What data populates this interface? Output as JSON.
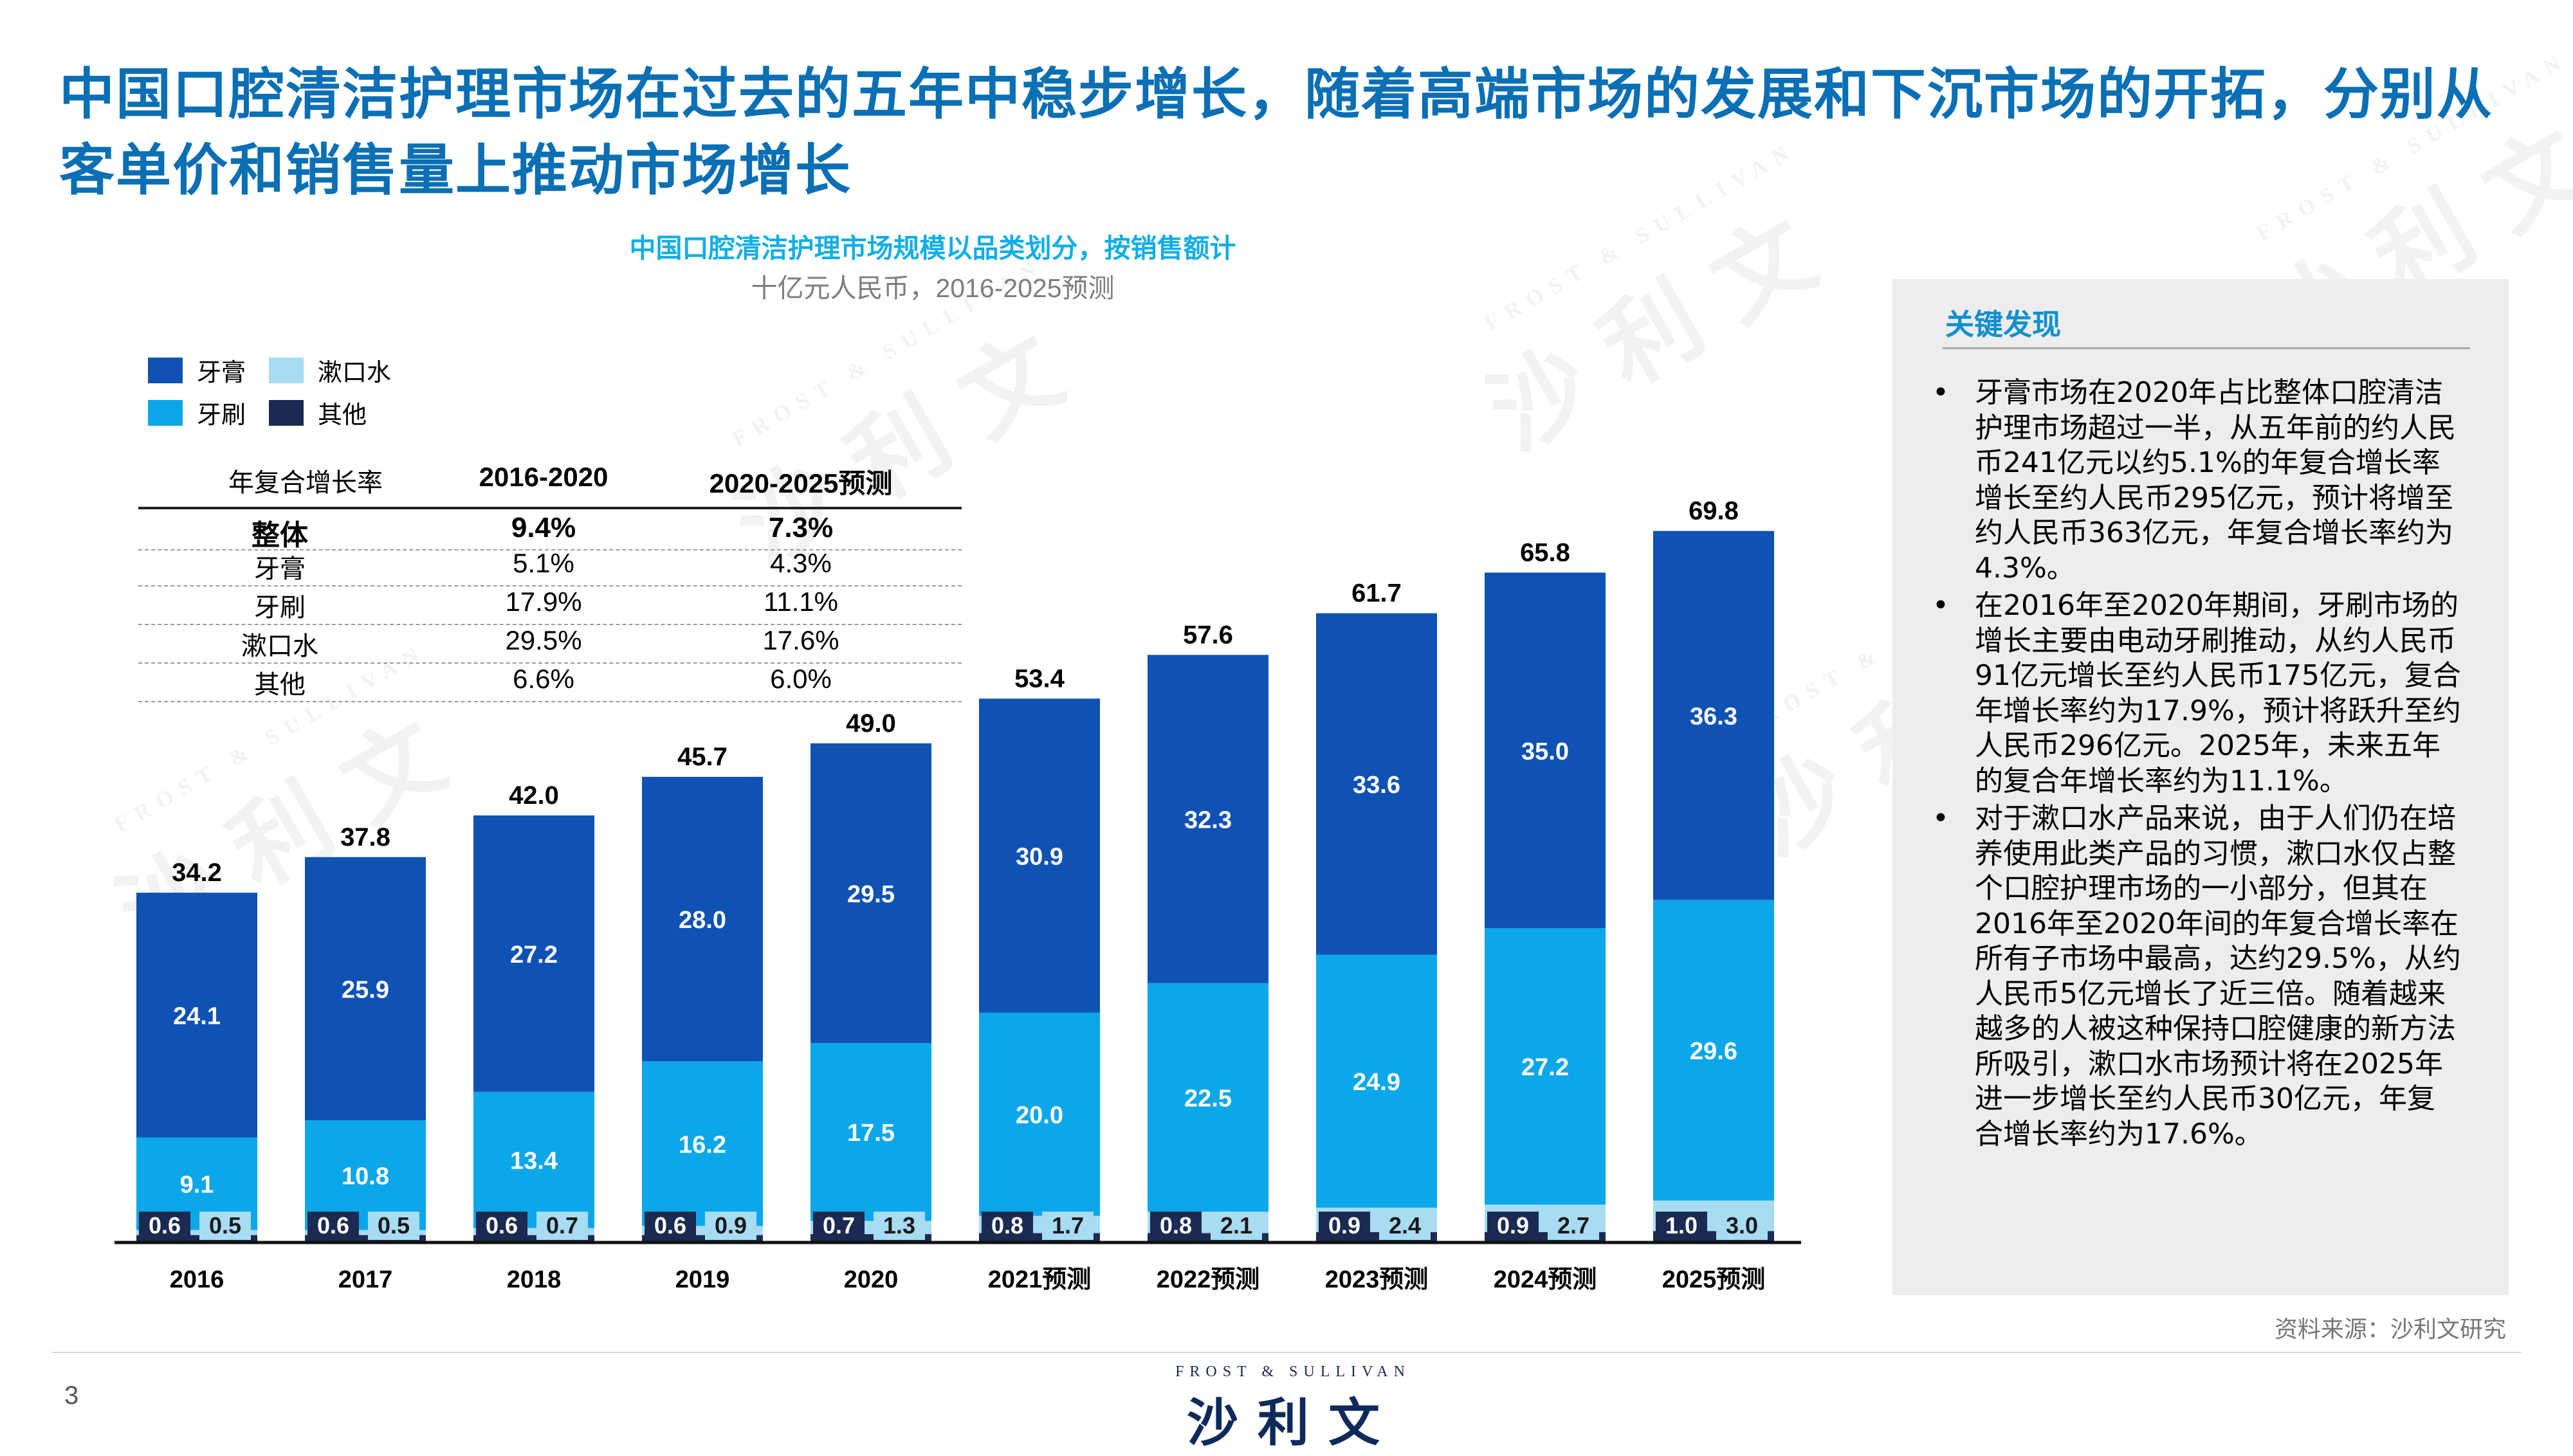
{
  "title": "中国口腔清洁护理市场在过去的五年中稳步增长，随着高端市场的发展和下沉市场的开拓，分别从客单价和销售量上推动市场增长",
  "page_number": "3",
  "source": "资料来源：沙利文研究",
  "brand": {
    "en": "FROST & SULLIVAN",
    "cn": "沙利文"
  },
  "watermark": {
    "en": "FROST & SULLIVAN",
    "cn": "沙利文"
  },
  "colors": {
    "toothpaste": "#0f52b3",
    "toothbrush": "#0ca7e8",
    "mouthwash": "#a7dcf3",
    "other": "#1a2a52",
    "title": "#0a6fb5"
  },
  "legend": [
    {
      "name": "牙膏",
      "color": "#0f52b3"
    },
    {
      "name": "漱口水",
      "color": "#a7dcf3"
    },
    {
      "name": "牙刷",
      "color": "#0ca7e8"
    },
    {
      "name": "其他",
      "color": "#1a2a52"
    }
  ],
  "cagr_table": {
    "header": [
      "年复合增长率",
      "2016-2020",
      "2020-2025预测"
    ],
    "rows": [
      [
        "整体",
        "9.4%",
        "7.3%"
      ],
      [
        "牙膏",
        "5.1%",
        "4.3%"
      ],
      [
        "牙刷",
        "17.9%",
        "11.1%"
      ],
      [
        "漱口水",
        "29.5%",
        "17.6%"
      ],
      [
        "其他",
        "6.6%",
        "6.0%"
      ]
    ]
  },
  "findings": {
    "heading": "关键发现",
    "items": [
      "牙膏市场在2020年占比整体口腔清洁护理市场超过一半，从五年前的约人民币241亿元以约5.1%的年复合增长率增长至约人民币295亿元，预计将增至约人民币363亿元，年复合增长率约为4.3%。",
      "在2016年至2020年期间，牙刷市场的增长主要由电动牙刷推动，从约人民币91亿元增长至约人民币175亿元，复合年增长率约为17.9%，预计将跃升至约人民币296亿元。2025年，未来五年的复合年增长率约为11.1%。",
      "对于漱口水产品来说，由于人们仍在培养使用此类产品的习惯，漱口水仅占整个口腔护理市场的一小部分，但其在2016年至2020年间的年复合增长率在所有子市场中最高，达约29.5%，从约人民币5亿元增长了近三倍。随着越来越多的人被这种保持口腔健康的新方法所吸引，漱口水市场预计将在2025年进一步增长至约人民币30亿元，年复合增长率约为17.6%。"
    ]
  },
  "chart_data": {
    "type": "bar",
    "stacked": true,
    "title": "中国口腔清洁护理市场规模以品类划分，按销售额计",
    "subtitle": "十亿元人民币，2016-2025预测",
    "categories": [
      "2016",
      "2017",
      "2018",
      "2019",
      "2020",
      "2021预测",
      "2022预测",
      "2023预测",
      "2024预测",
      "2025预测"
    ],
    "series": [
      {
        "name": "其他",
        "values": [
          0.6,
          0.6,
          0.6,
          0.6,
          0.7,
          0.8,
          0.8,
          0.9,
          0.9,
          1.0
        ]
      },
      {
        "name": "漱口水",
        "values": [
          0.5,
          0.5,
          0.7,
          0.9,
          1.3,
          1.7,
          2.1,
          2.4,
          2.7,
          3.0
        ]
      },
      {
        "name": "牙刷",
        "values": [
          9.1,
          10.8,
          13.4,
          16.2,
          17.5,
          20.0,
          22.5,
          24.9,
          27.2,
          29.6
        ]
      },
      {
        "name": "牙膏",
        "values": [
          24.1,
          25.9,
          27.2,
          28.0,
          29.5,
          30.9,
          32.3,
          33.6,
          35.0,
          36.3
        ]
      }
    ],
    "totals": [
      34.2,
      37.8,
      42.0,
      45.7,
      49.0,
      53.4,
      57.6,
      61.7,
      65.8,
      69.8
    ],
    "ylim": [
      0,
      70
    ],
    "grid": false,
    "legend_position": "top-left"
  }
}
